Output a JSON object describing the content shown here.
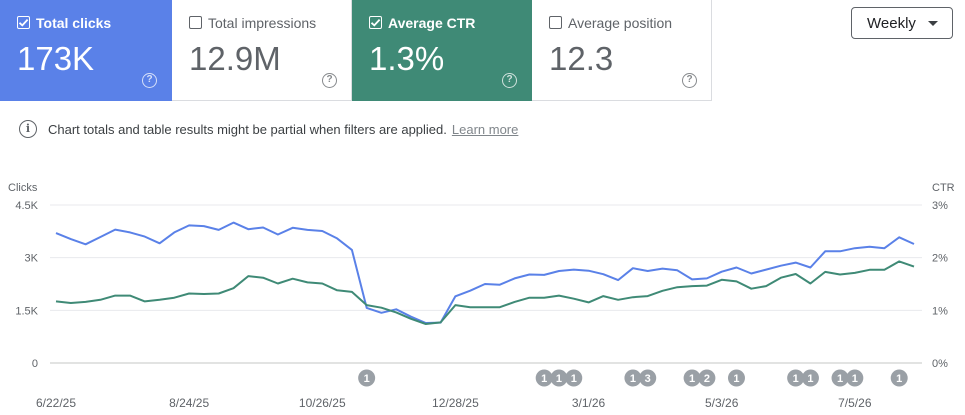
{
  "metric_cards": [
    {
      "label": "Total clicks",
      "value": "173K",
      "checked": true,
      "color": "#5a81e8"
    },
    {
      "label": "Total impressions",
      "value": "12.9M",
      "checked": false,
      "color": "#ffffff"
    },
    {
      "label": "Average CTR",
      "value": "1.3%",
      "checked": true,
      "color": "#3f8a76"
    },
    {
      "label": "Average position",
      "value": "12.3",
      "checked": false,
      "color": "#ffffff"
    }
  ],
  "help_glyph": "?",
  "period_select": {
    "value": "Weekly"
  },
  "notice": {
    "icon": "i",
    "text": "Chart totals and table results might be partial when filters are applied.",
    "link": "Learn more"
  },
  "chart_data": {
    "type": "line",
    "left_axis": {
      "label": "Clicks",
      "ticks": [
        "4.5K",
        "3K",
        "1.5K",
        "0"
      ],
      "range": [
        0,
        4500
      ]
    },
    "right_axis": {
      "label": "CTR",
      "ticks": [
        "3%",
        "2%",
        "1%",
        "0%"
      ],
      "range": [
        0,
        3
      ]
    },
    "x_tick_labels": [
      "6/22/25",
      "8/24/25",
      "10/26/25",
      "12/28/25",
      "3/1/26",
      "5/3/26",
      "7/5/26"
    ],
    "grid": true,
    "series": [
      {
        "axis": "left",
        "color": "#5a81e8",
        "values": [
          3700,
          3530,
          3380,
          3590,
          3800,
          3720,
          3600,
          3410,
          3720,
          3920,
          3900,
          3790,
          4000,
          3810,
          3860,
          3660,
          3850,
          3790,
          3760,
          3550,
          3220,
          1570,
          1430,
          1530,
          1320,
          1140,
          1150,
          1900,
          2060,
          2250,
          2230,
          2410,
          2520,
          2510,
          2620,
          2660,
          2630,
          2530,
          2360,
          2700,
          2620,
          2690,
          2640,
          2380,
          2410,
          2600,
          2720,
          2550,
          2660,
          2770,
          2860,
          2720,
          3180,
          3180,
          3270,
          3310,
          3270,
          3580,
          3390
        ]
      },
      {
        "axis": "right",
        "color": "#3f8a76",
        "values": [
          1.17,
          1.14,
          1.16,
          1.2,
          1.28,
          1.28,
          1.17,
          1.2,
          1.24,
          1.32,
          1.31,
          1.32,
          1.42,
          1.65,
          1.62,
          1.51,
          1.6,
          1.53,
          1.51,
          1.38,
          1.35,
          1.1,
          1.05,
          0.96,
          0.84,
          0.74,
          0.77,
          1.1,
          1.06,
          1.06,
          1.06,
          1.16,
          1.24,
          1.24,
          1.28,
          1.22,
          1.15,
          1.27,
          1.2,
          1.25,
          1.27,
          1.37,
          1.44,
          1.46,
          1.47,
          1.58,
          1.55,
          1.41,
          1.46,
          1.62,
          1.69,
          1.51,
          1.73,
          1.68,
          1.71,
          1.77,
          1.77,
          1.93,
          1.83
        ]
      }
    ],
    "annotations": [
      {
        "week": 21,
        "label": "1"
      },
      {
        "week": 33,
        "label": "1"
      },
      {
        "week": 34,
        "label": "1"
      },
      {
        "week": 35,
        "label": "1"
      },
      {
        "week": 39,
        "label": "1"
      },
      {
        "week": 40,
        "label": "3"
      },
      {
        "week": 43,
        "label": "1"
      },
      {
        "week": 44,
        "label": "2"
      },
      {
        "week": 46,
        "label": "1"
      },
      {
        "week": 50,
        "label": "1"
      },
      {
        "week": 51,
        "label": "1"
      },
      {
        "week": 53,
        "label": "1"
      },
      {
        "week": 54,
        "label": "1"
      },
      {
        "week": 57,
        "label": "1"
      }
    ]
  }
}
